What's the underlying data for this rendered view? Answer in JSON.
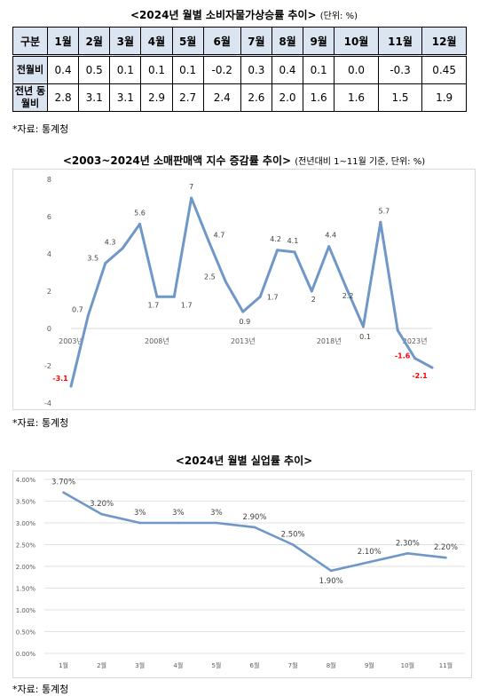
{
  "cpi": {
    "title": "<2024년 월별 소비자물가상승률 추이>",
    "unit": "(단위: %)",
    "corner": "구분",
    "months": [
      "1월",
      "2월",
      "3월",
      "4월",
      "5월",
      "6월",
      "7월",
      "8월",
      "9월",
      "10월",
      "11월",
      "12월"
    ],
    "rows": [
      {
        "label": "전월비",
        "values": [
          "0.4",
          "0.5",
          "0.1",
          "0.1",
          "0.1",
          "-0.2",
          "0.3",
          "0.4",
          "0.1",
          "0.0",
          "-0.3",
          "0.45"
        ]
      },
      {
        "label": "전년 동월비",
        "values": [
          "2.8",
          "3.1",
          "3.1",
          "2.9",
          "2.7",
          "2.4",
          "2.6",
          "2.0",
          "1.6",
          "1.6",
          "1.5",
          "1.9"
        ]
      }
    ],
    "source": "*자료: 통계청"
  },
  "chart_data": [
    {
      "type": "line",
      "title": "<2003~2024년 소매판매액 지수 증감률 추이>",
      "subtitle": "(전년대비 1~11월 기준, 단위: %)",
      "x": [
        2003,
        2004,
        2005,
        2006,
        2007,
        2008,
        2009,
        2010,
        2011,
        2012,
        2013,
        2014,
        2015,
        2016,
        2017,
        2018,
        2019,
        2020,
        2021,
        2022,
        2023,
        2024
      ],
      "x_tick_labels": [
        "2003년",
        "2008년",
        "2013년",
        "2018년",
        "2023년"
      ],
      "x_tick_values": [
        2003,
        2008,
        2013,
        2018,
        2023
      ],
      "values": [
        -3.1,
        0.7,
        3.5,
        4.3,
        5.6,
        1.7,
        1.7,
        7,
        4.7,
        2.5,
        0.9,
        1.7,
        4.2,
        4.1,
        2,
        4.4,
        2.2,
        0.1,
        5.7,
        -0.1,
        -1.6,
        -2.1
      ],
      "data_labels": [
        "-3.1",
        "0.7",
        "3.5",
        "4.3",
        "5.6",
        "1.7",
        "1.7",
        "7",
        "4.7",
        "2.5",
        "0.9",
        "1.7",
        "4.2",
        "4.1",
        "2",
        "4.4",
        "2.2",
        "0.1",
        "5.7",
        "",
        "-1.6",
        "-2.1"
      ],
      "highlight_negative_color": "#ff0000",
      "line_color": "#6f97c7",
      "ylim": [
        -4,
        8
      ],
      "y_ticks": [
        -4,
        -2,
        0,
        2,
        4,
        6,
        8
      ],
      "grid": false,
      "source": "*자료: 통계청"
    },
    {
      "type": "line",
      "title": "<2024년 월별 실업률 추이>",
      "categories": [
        "1월",
        "2월",
        "3월",
        "4월",
        "5월",
        "6월",
        "7월",
        "8월",
        "9월",
        "10월",
        "11월"
      ],
      "values": [
        3.7,
        3.2,
        3.0,
        3.0,
        3.0,
        2.9,
        2.5,
        1.9,
        2.1,
        2.3,
        2.2
      ],
      "data_labels": [
        "3.70%",
        "3.20%",
        "3%",
        "3%",
        "3%",
        "2.90%",
        "2.50%",
        "1.90%",
        "2.10%",
        "2.30%",
        "2.20%"
      ],
      "line_color": "#6f97c7",
      "ylim": [
        0,
        4
      ],
      "y_ticks": [
        "0.00%",
        "0.50%",
        "1.00%",
        "1.50%",
        "2.00%",
        "2.50%",
        "3.00%",
        "3.50%",
        "4.00%"
      ],
      "grid": true,
      "source": "*자료: 통계청"
    }
  ]
}
